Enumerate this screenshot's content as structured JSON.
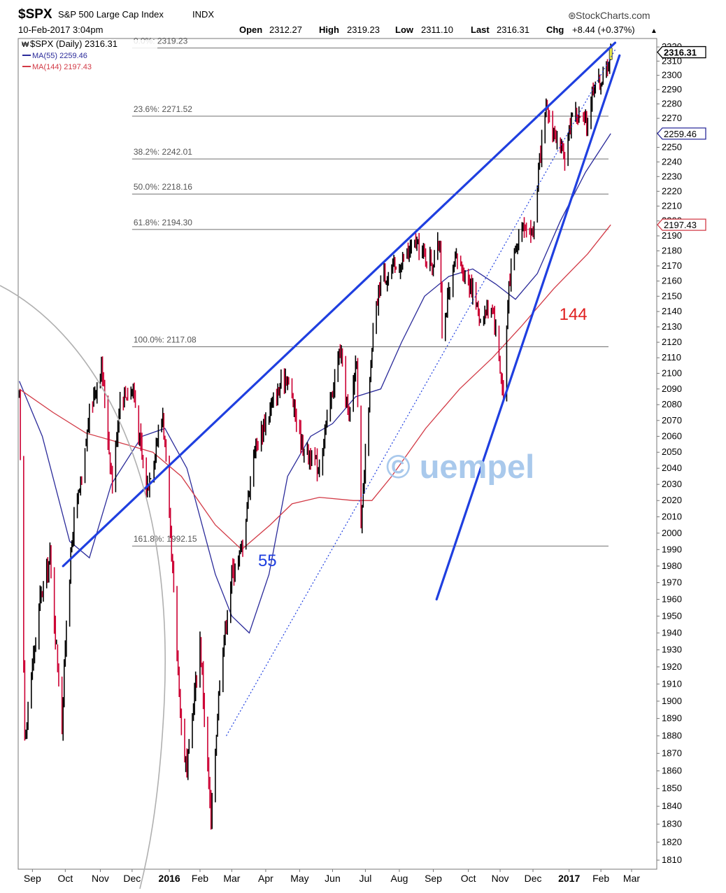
{
  "header": {
    "symbol": "$SPX",
    "name": "S&P 500 Large Cap Index",
    "exchange": "INDX",
    "brand": "StockCharts.com",
    "datetime": "10-Feb-2017 3:04pm",
    "open_label": "Open",
    "open_value": "2312.27",
    "high_label": "High",
    "high_value": "2319.23",
    "low_label": "Low",
    "low_value": "2311.10",
    "last_label": "Last",
    "last_value": "2316.31",
    "chg_label": "Chg",
    "chg_value": "+8.44 (+0.37%)"
  },
  "legend": {
    "price_label": "$SPX (Daily) 2316.31",
    "ma55_label": "MA(55) 2259.46",
    "ma144_label": "MA(144) 2197.43"
  },
  "annotations": {
    "ma55_tag": "55",
    "ma144_tag": "144",
    "watermark": "© uempel"
  },
  "colors": {
    "up": "#000000",
    "down": "#cc0033",
    "ma55": "#2b2b9a",
    "ma144": "#d23a46",
    "trendline": "#1f3fe0",
    "fib": "#707070",
    "watermark": "#a9c9ec",
    "last_tag": "#000000"
  },
  "chart_data": {
    "type": "line",
    "title": "$SPX S&P 500 Large Cap Index",
    "y_scale": "log",
    "ylim": [
      1805,
      2326
    ],
    "y_ticks": [
      1810,
      1820,
      1830,
      1840,
      1850,
      1860,
      1870,
      1880,
      1890,
      1900,
      1910,
      1920,
      1930,
      1940,
      1950,
      1960,
      1970,
      1980,
      1990,
      2000,
      2010,
      2020,
      2030,
      2040,
      2050,
      2060,
      2070,
      2080,
      2090,
      2100,
      2110,
      2120,
      2130,
      2140,
      2150,
      2160,
      2170,
      2180,
      2190,
      2200,
      2210,
      2220,
      2230,
      2240,
      2250,
      2260,
      2270,
      2280,
      2290,
      2300,
      2310,
      2320
    ],
    "x_labels": [
      {
        "label": "Sep",
        "date": "2015-09-01"
      },
      {
        "label": "Oct",
        "date": "2015-10-01"
      },
      {
        "label": "Nov",
        "date": "2015-11-02"
      },
      {
        "label": "Dec",
        "date": "2015-12-01"
      },
      {
        "label": "2016",
        "date": "2016-01-04",
        "bold": true
      },
      {
        "label": "Feb",
        "date": "2016-02-01"
      },
      {
        "label": "Mar",
        "date": "2016-03-01"
      },
      {
        "label": "Apr",
        "date": "2016-04-01"
      },
      {
        "label": "May",
        "date": "2016-05-02"
      },
      {
        "label": "Jun",
        "date": "2016-06-01"
      },
      {
        "label": "Jul",
        "date": "2016-07-01"
      },
      {
        "label": "Aug",
        "date": "2016-08-01"
      },
      {
        "label": "Sep",
        "date": "2016-09-01"
      },
      {
        "label": "Oct",
        "date": "2016-10-03"
      },
      {
        "label": "Nov",
        "date": "2016-11-01"
      },
      {
        "label": "Dec",
        "date": "2016-12-01"
      },
      {
        "label": "2017",
        "date": "2017-01-03",
        "bold": true
      },
      {
        "label": "Feb",
        "date": "2017-02-01"
      },
      {
        "label": "Mar",
        "date": "2017-03-01"
      }
    ],
    "x_range": [
      "2015-08-19",
      "2017-03-24"
    ],
    "fib_levels": [
      {
        "label": "0.0%: 2319.23",
        "value": 2319.23
      },
      {
        "label": "23.6%: 2271.52",
        "value": 2271.52
      },
      {
        "label": "38.2%: 2242.01",
        "value": 2242.01
      },
      {
        "label": "50.0%: 2218.16",
        "value": 2218.16
      },
      {
        "label": "61.8%: 2194.30",
        "value": 2194.3
      },
      {
        "label": "100.0%: 2117.08",
        "value": 2117.08
      },
      {
        "label": "161.8%: 1992.15",
        "value": 1992.15
      }
    ],
    "fib_start_date": "2015-12-01",
    "price_path": [
      [
        "2015-08-20",
        2085
      ],
      [
        "2015-08-25",
        1880
      ],
      [
        "2015-09-01",
        1920
      ],
      [
        "2015-09-08",
        1960
      ],
      [
        "2015-09-17",
        1985
      ],
      [
        "2015-09-28",
        1885
      ],
      [
        "2015-10-02",
        1950
      ],
      [
        "2015-10-09",
        2010
      ],
      [
        "2015-10-16",
        2030
      ],
      [
        "2015-10-23",
        2075
      ],
      [
        "2015-11-03",
        2105
      ],
      [
        "2015-11-13",
        2030
      ],
      [
        "2015-11-20",
        2085
      ],
      [
        "2015-12-02",
        2090
      ],
      [
        "2015-12-14",
        2025
      ],
      [
        "2015-12-29",
        2075
      ],
      [
        "2016-01-06",
        1985
      ],
      [
        "2016-01-15",
        1885
      ],
      [
        "2016-01-20",
        1860
      ],
      [
        "2016-02-01",
        1935
      ],
      [
        "2016-02-11",
        1830
      ],
      [
        "2016-02-19",
        1915
      ],
      [
        "2016-03-01",
        1975
      ],
      [
        "2016-03-10",
        1990
      ],
      [
        "2016-03-21",
        2050
      ],
      [
        "2016-04-01",
        2070
      ],
      [
        "2016-04-20",
        2100
      ],
      [
        "2016-05-04",
        2055
      ],
      [
        "2016-05-19",
        2040
      ],
      [
        "2016-06-08",
        2115
      ],
      [
        "2016-06-16",
        2070
      ],
      [
        "2016-06-23",
        2112
      ],
      [
        "2016-06-27",
        2000
      ],
      [
        "2016-07-08",
        2125
      ],
      [
        "2016-07-15",
        2162
      ],
      [
        "2016-08-01",
        2170
      ],
      [
        "2016-08-15",
        2185
      ],
      [
        "2016-08-31",
        2172
      ],
      [
        "2016-09-07",
        2186
      ],
      [
        "2016-09-09",
        2128
      ],
      [
        "2016-09-22",
        2175
      ],
      [
        "2016-10-05",
        2158
      ],
      [
        "2016-10-14",
        2135
      ],
      [
        "2016-10-25",
        2145
      ],
      [
        "2016-11-04",
        2085
      ],
      [
        "2016-11-09",
        2160
      ],
      [
        "2016-11-21",
        2200
      ],
      [
        "2016-12-01",
        2191
      ],
      [
        "2016-12-07",
        2240
      ],
      [
        "2016-12-13",
        2275
      ],
      [
        "2016-12-30",
        2240
      ],
      [
        "2017-01-06",
        2276
      ],
      [
        "2017-01-19",
        2265
      ],
      [
        "2017-01-26",
        2296
      ],
      [
        "2017-02-03",
        2297
      ],
      [
        "2017-02-10",
        2316
      ]
    ],
    "ma55_path": [
      [
        "2015-08-20",
        2095
      ],
      [
        "2015-09-10",
        2060
      ],
      [
        "2015-10-05",
        1995
      ],
      [
        "2015-10-23",
        1985
      ],
      [
        "2015-11-12",
        2030
      ],
      [
        "2015-12-10",
        2060
      ],
      [
        "2015-12-31",
        2065
      ],
      [
        "2016-01-20",
        2040
      ],
      [
        "2016-02-15",
        1975
      ],
      [
        "2016-03-01",
        1950
      ],
      [
        "2016-03-17",
        1940
      ],
      [
        "2016-04-04",
        1975
      ],
      [
        "2016-04-21",
        2035
      ],
      [
        "2016-05-12",
        2060
      ],
      [
        "2016-06-01",
        2068
      ],
      [
        "2016-06-22",
        2085
      ],
      [
        "2016-07-15",
        2090
      ],
      [
        "2016-08-03",
        2120
      ],
      [
        "2016-08-24",
        2150
      ],
      [
        "2016-09-15",
        2163
      ],
      [
        "2016-10-07",
        2168
      ],
      [
        "2016-10-28",
        2158
      ],
      [
        "2016-11-15",
        2148
      ],
      [
        "2016-12-05",
        2165
      ],
      [
        "2016-12-26",
        2200
      ],
      [
        "2017-01-18",
        2233
      ],
      [
        "2017-02-10",
        2259.46
      ]
    ],
    "ma144_path": [
      [
        "2015-08-20",
        2090
      ],
      [
        "2015-09-20",
        2075
      ],
      [
        "2015-10-20",
        2062
      ],
      [
        "2015-11-20",
        2056
      ],
      [
        "2015-12-20",
        2050
      ],
      [
        "2016-01-15",
        2035
      ],
      [
        "2016-02-15",
        2005
      ],
      [
        "2016-03-10",
        1990
      ],
      [
        "2016-04-05",
        2005
      ],
      [
        "2016-04-25",
        2018
      ],
      [
        "2016-05-20",
        2022
      ],
      [
        "2016-06-20",
        2020
      ],
      [
        "2016-07-07",
        2020
      ],
      [
        "2016-07-25",
        2035
      ],
      [
        "2016-08-25",
        2065
      ],
      [
        "2016-09-25",
        2090
      ],
      [
        "2016-10-25",
        2110
      ],
      [
        "2016-11-20",
        2130
      ],
      [
        "2016-12-20",
        2155
      ],
      [
        "2017-01-20",
        2178
      ],
      [
        "2017-02-10",
        2197.43
      ]
    ],
    "trendlines": [
      {
        "type": "solid",
        "from": [
          "2015-09-29",
          1980
        ],
        "to": [
          "2017-02-14",
          2323
        ]
      },
      {
        "type": "solid",
        "from": [
          "2016-09-04",
          1960
        ],
        "to": [
          "2017-02-18",
          2314
        ]
      },
      {
        "type": "dotted",
        "from": [
          "2016-02-25",
          1880
        ],
        "to": [
          "2017-02-14",
          2318
        ]
      }
    ],
    "label_ma55_at": [
      "2016-03-25",
      1985
    ],
    "label_ma144_at": [
      "2016-12-25",
      2140
    ],
    "last_tags": [
      {
        "value": 2316.31,
        "text": "2316.31",
        "style": "solid"
      },
      {
        "value": 2259.46,
        "text": "2259.46",
        "style": "ma55"
      },
      {
        "value": 2197.43,
        "text": "2197.43",
        "style": "ma144"
      }
    ]
  }
}
